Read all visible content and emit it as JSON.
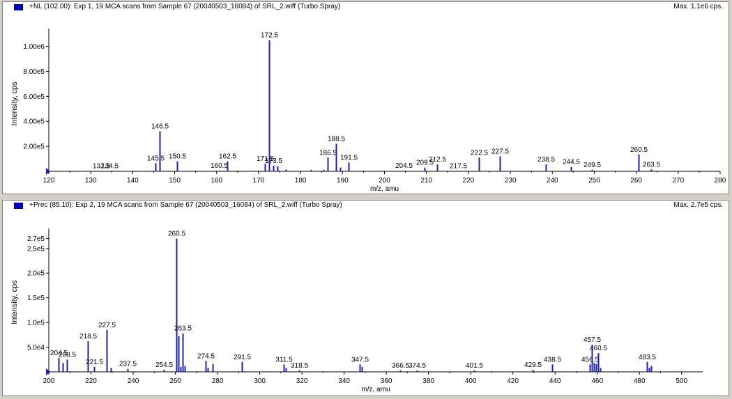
{
  "colors": {
    "peak": "#1f1fa8",
    "axis": "#000000",
    "background": "#ffffff",
    "frame": "#d4d0c8"
  },
  "panels": [
    {
      "header_icon": "spectrum-color-square",
      "title": "+NL (102.00): Exp 1, 19 MCA scans from Sample 67 (20040503_16084) of SRL_2.wiff (Turbo Spray)",
      "max_text": "Max. 1.1e6 cps."
    },
    {
      "header_icon": "spectrum-color-square",
      "title": "+Prec (85.10): Exp 2, 19 MCA scans from Sample 67 (20040503_16084) of SRL_2.wiff (Turbo Spray)",
      "max_text": "Max. 2.7e5 cps."
    }
  ],
  "chart_data": [
    {
      "type": "bar",
      "xlabel": "m/z, amu",
      "ylabel": "Intensity, cps",
      "xlim": [
        120,
        280
      ],
      "ylim": [
        0,
        1120000
      ],
      "xticks": [
        "120",
        "130",
        "140",
        "150",
        "160",
        "170",
        "180",
        "190",
        "200",
        "210",
        "220",
        "230",
        "240",
        "250",
        "260",
        "270",
        "280"
      ],
      "yticks": [
        "2.00e5",
        "4.00e5",
        "6.00e5",
        "8.00e5",
        "1.00e6"
      ],
      "ytick_values": [
        200000,
        400000,
        600000,
        800000,
        1000000
      ],
      "peaks": [
        {
          "mz": 132.5,
          "i": 4000,
          "label": "132.5"
        },
        {
          "mz": 134.5,
          "i": 4000,
          "label": "134.5"
        },
        {
          "mz": 145.5,
          "i": 65000,
          "label": "145.5"
        },
        {
          "mz": 146.5,
          "i": 320000,
          "label": "146.5"
        },
        {
          "mz": 150.5,
          "i": 80000,
          "label": "150.5"
        },
        {
          "mz": 160.5,
          "i": 5000,
          "label": "160.5"
        },
        {
          "mz": 162.5,
          "i": 80000,
          "label": "162.5"
        },
        {
          "mz": 171.5,
          "i": 60000,
          "label": "171.5"
        },
        {
          "mz": 172.5,
          "i": 1050000,
          "label": "172.5"
        },
        {
          "mz": 173.5,
          "i": 45000,
          "label": "173.5"
        },
        {
          "mz": 174.5,
          "i": 40000,
          "label": ""
        },
        {
          "mz": 176.5,
          "i": 15000,
          "label": ""
        },
        {
          "mz": 182.5,
          "i": 12000,
          "label": ""
        },
        {
          "mz": 185.5,
          "i": 12000,
          "label": ""
        },
        {
          "mz": 186.5,
          "i": 110000,
          "label": "186.5"
        },
        {
          "mz": 188.5,
          "i": 220000,
          "label": "188.5"
        },
        {
          "mz": 189.5,
          "i": 30000,
          "label": ""
        },
        {
          "mz": 191.5,
          "i": 70000,
          "label": "191.5"
        },
        {
          "mz": 204.5,
          "i": 5000,
          "label": "204.5"
        },
        {
          "mz": 209.5,
          "i": 30000,
          "label": "209.5"
        },
        {
          "mz": 212.5,
          "i": 55000,
          "label": "212.5"
        },
        {
          "mz": 217.5,
          "i": 4000,
          "label": "217.5"
        },
        {
          "mz": 222.5,
          "i": 110000,
          "label": "222.5"
        },
        {
          "mz": 227.5,
          "i": 120000,
          "label": "227.5"
        },
        {
          "mz": 238.5,
          "i": 55000,
          "label": "238.5"
        },
        {
          "mz": 244.5,
          "i": 35000,
          "label": "244.5"
        },
        {
          "mz": 249.5,
          "i": 12000,
          "label": "249.5"
        },
        {
          "mz": 260.5,
          "i": 135000,
          "label": "260.5"
        },
        {
          "mz": 263.5,
          "i": 15000,
          "label": "263.5"
        }
      ]
    },
    {
      "type": "bar",
      "xlabel": "m/z, amu",
      "ylabel": "Intensity, cps",
      "xlim": [
        200,
        510
      ],
      "ylim": [
        0,
        285000
      ],
      "xticks": [
        "200",
        "220",
        "240",
        "260",
        "280",
        "300",
        "320",
        "340",
        "360",
        "380",
        "400",
        "420",
        "440",
        "460",
        "480",
        "500"
      ],
      "yticks": [
        "5.0e4",
        "1.0e5",
        "1.5e5",
        "2.0e5",
        "2.5e5",
        "2.7e5"
      ],
      "ytick_values": [
        50000,
        100000,
        150000,
        200000,
        250000,
        270000
      ],
      "peaks": [
        {
          "mz": 204.5,
          "i": 28000,
          "label": "204.5"
        },
        {
          "mz": 206.5,
          "i": 18000,
          "label": ""
        },
        {
          "mz": 208.5,
          "i": 25000,
          "label": "208.5"
        },
        {
          "mz": 218.5,
          "i": 62000,
          "label": "218.5"
        },
        {
          "mz": 221.5,
          "i": 10000,
          "label": "221.5"
        },
        {
          "mz": 227.5,
          "i": 85000,
          "label": "227.5"
        },
        {
          "mz": 229.5,
          "i": 8000,
          "label": ""
        },
        {
          "mz": 237.5,
          "i": 6000,
          "label": "237.5"
        },
        {
          "mz": 254.5,
          "i": 4000,
          "label": "254.5"
        },
        {
          "mz": 260.5,
          "i": 270000,
          "label": "260.5"
        },
        {
          "mz": 261.5,
          "i": 72000,
          "label": ""
        },
        {
          "mz": 262.5,
          "i": 10000,
          "label": ""
        },
        {
          "mz": 263.5,
          "i": 78000,
          "label": "263.5"
        },
        {
          "mz": 264.5,
          "i": 12000,
          "label": ""
        },
        {
          "mz": 274.5,
          "i": 22000,
          "label": "274.5"
        },
        {
          "mz": 275.5,
          "i": 8000,
          "label": ""
        },
        {
          "mz": 277.5,
          "i": 16000,
          "label": ""
        },
        {
          "mz": 291.5,
          "i": 20000,
          "label": "291.5"
        },
        {
          "mz": 311.5,
          "i": 15000,
          "label": "311.5"
        },
        {
          "mz": 312.5,
          "i": 8000,
          "label": ""
        },
        {
          "mz": 318.5,
          "i": 3000,
          "label": "318.5"
        },
        {
          "mz": 347.5,
          "i": 15000,
          "label": "347.5"
        },
        {
          "mz": 348.5,
          "i": 10000,
          "label": ""
        },
        {
          "mz": 366.5,
          "i": 3000,
          "label": "366.5"
        },
        {
          "mz": 374.5,
          "i": 3000,
          "label": "374.5"
        },
        {
          "mz": 401.5,
          "i": 3000,
          "label": "401.5"
        },
        {
          "mz": 429.5,
          "i": 4000,
          "label": "429.5"
        },
        {
          "mz": 438.5,
          "i": 15000,
          "label": "438.5"
        },
        {
          "mz": 456.5,
          "i": 15000,
          "label": "456.5"
        },
        {
          "mz": 457.5,
          "i": 55000,
          "label": "457.5"
        },
        {
          "mz": 458.5,
          "i": 18000,
          "label": ""
        },
        {
          "mz": 459.5,
          "i": 16000,
          "label": ""
        },
        {
          "mz": 460.5,
          "i": 38000,
          "label": "460.5"
        },
        {
          "mz": 461.5,
          "i": 8000,
          "label": ""
        },
        {
          "mz": 483.5,
          "i": 20000,
          "label": "483.5"
        },
        {
          "mz": 484.5,
          "i": 8000,
          "label": ""
        },
        {
          "mz": 485.5,
          "i": 12000,
          "label": ""
        }
      ]
    }
  ]
}
